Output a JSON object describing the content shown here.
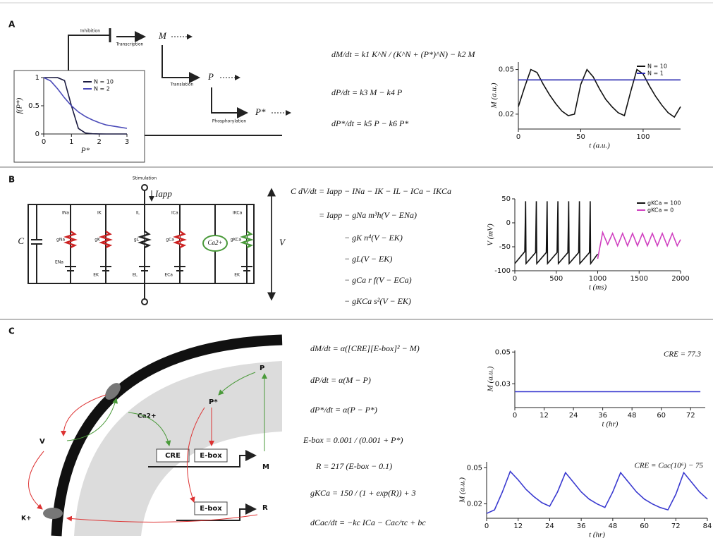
{
  "panels": [
    {
      "label": "A",
      "diagram": {
        "inhibition": "Inhibition",
        "transcription": "Transcription",
        "m": "M",
        "translation": "Translation",
        "p": "P",
        "phosphorylation": "Phosphorylation",
        "p_star": "P*"
      },
      "equations": [
        "dM/dt = k1 K^N / (K^N + (P*)^N) − k2 M",
        "dP/dt = k3 M − k4 P",
        "dP*/dt = k5 P − k6 P*"
      ]
    },
    {
      "label": "B",
      "diagram": {
        "stimulation": "Stimulation",
        "i_app": "Iapp",
        "c": "C",
        "currents": [
          "INa",
          "IK",
          "IL",
          "ICa",
          "IKCa"
        ],
        "conductances": [
          "gNa",
          "gK",
          "gL",
          "gCa",
          "gKCa"
        ],
        "reversals": [
          "ENa",
          "EK",
          "EL",
          "ECa",
          "EK"
        ],
        "calcium": "Ca2+",
        "v": "V"
      },
      "equations": [
        "C dV/dt = Iapp − INa − IK − IL − ICa − IKCa",
        "= Iapp − gNa m³h(V − ENa)",
        "− gK n⁴(V − EK)",
        "− gL(V − EK)",
        "− gCa r f(V − ECa)",
        "− gKCa s²(V − EK)"
      ]
    },
    {
      "label": "C",
      "diagram": {
        "calcium": "Ca2+",
        "v": "V",
        "potassium": "K+",
        "cre": "CRE",
        "ebox1": "E-box",
        "m": "M",
        "p": "P",
        "p_star": "P*",
        "ebox2": "E-box",
        "r": "R"
      },
      "equations": [
        "dM/dt = α([CRE][E-box]² − M)",
        "dP/dt = α(M − P)",
        "dP*/dt = α(P − P*)",
        "E-box = 0.001 / (0.001 + P*)",
        "R = 217 (E-box − 0.1)",
        "gKCa = 150 / (1 + exp(R)) + 3",
        "dCac/dt = −kc ICa − Cac/τc + bc"
      ]
    }
  ],
  "chart_data": [
    {
      "type": "line",
      "xlabel": "P*",
      "ylabel": "f(P*)",
      "x": [
        0,
        0.25,
        0.5,
        0.75,
        1,
        1.25,
        1.5,
        1.75,
        2,
        2.25,
        2.5,
        2.75,
        3
      ],
      "series": [
        {
          "name": "N = 10",
          "color": "#1a1a40",
          "values": [
            1,
            1,
            0.999,
            0.947,
            0.5,
            0.097,
            0.017,
            0.004,
            0.001,
            0,
            0,
            0,
            0
          ]
        },
        {
          "name": "N = 2",
          "color": "#4a4ab8",
          "values": [
            1,
            0.94,
            0.8,
            0.64,
            0.5,
            0.39,
            0.31,
            0.25,
            0.2,
            0.16,
            0.14,
            0.12,
            0.1
          ]
        }
      ],
      "xlim": [
        0,
        3
      ],
      "ylim": [
        0,
        1
      ],
      "xticks": [
        0,
        1,
        2,
        3
      ],
      "yticks": [
        0,
        0.5,
        1
      ],
      "legend": "upper right"
    },
    {
      "type": "line",
      "xlabel": "t (a.u.)",
      "ylabel": "M (a.u.)",
      "x": [
        0,
        5,
        10,
        15,
        20,
        25,
        30,
        35,
        40,
        45,
        50,
        55,
        60,
        65,
        70,
        75,
        80,
        85,
        90,
        95,
        100,
        105,
        110,
        115,
        120,
        125,
        130
      ],
      "series": [
        {
          "name": "N = 10",
          "color": "#111111",
          "values": [
            0.025,
            0.038,
            0.05,
            0.048,
            0.04,
            0.033,
            0.027,
            0.022,
            0.019,
            0.02,
            0.04,
            0.05,
            0.045,
            0.037,
            0.03,
            0.025,
            0.021,
            0.019,
            0.035,
            0.05,
            0.047,
            0.039,
            0.032,
            0.026,
            0.021,
            0.018,
            0.025
          ]
        },
        {
          "name": "N = 1",
          "color": "#2b2bb0",
          "values": [
            0.043,
            0.043,
            0.043,
            0.043,
            0.043,
            0.043,
            0.043,
            0.043,
            0.043,
            0.043,
            0.043,
            0.043,
            0.043,
            0.043,
            0.043,
            0.043,
            0.043,
            0.043,
            0.043,
            0.043,
            0.043,
            0.043,
            0.043,
            0.043,
            0.043,
            0.043,
            0.043
          ]
        }
      ],
      "xlim": [
        0,
        130
      ],
      "ylim": [
        0.01,
        0.055
      ],
      "xticks": [
        0,
        50,
        100
      ],
      "yticks": [
        0.02,
        0.05
      ],
      "legend": "upper right"
    },
    {
      "type": "line",
      "xlabel": "t (ms)",
      "ylabel": "V (mV)",
      "series": [
        {
          "name": "gKCa = 100",
          "color": "#111111",
          "x": [
            0,
            120,
            130,
            135,
            250,
            260,
            265,
            380,
            390,
            395,
            510,
            520,
            525,
            640,
            650,
            655,
            770,
            780,
            785,
            900,
            910,
            915,
            1000
          ],
          "values": [
            -85,
            -60,
            45,
            -85,
            -62,
            45,
            -85,
            -62,
            45,
            -85,
            -62,
            45,
            -85,
            -62,
            45,
            -85,
            -62,
            45,
            -85,
            -62,
            45,
            -85,
            -65
          ]
        },
        {
          "name": "gKCa = 0",
          "color": "#d040c0",
          "x": [
            1000,
            1060,
            1120,
            1180,
            1240,
            1300,
            1360,
            1420,
            1480,
            1540,
            1600,
            1660,
            1720,
            1780,
            1840,
            1900,
            1960,
            2000
          ],
          "values": [
            -75,
            -20,
            -45,
            -22,
            -48,
            -22,
            -48,
            -22,
            -48,
            -22,
            -48,
            -22,
            -48,
            -22,
            -48,
            -22,
            -48,
            -35
          ]
        }
      ],
      "xlim": [
        0,
        2000
      ],
      "ylim": [
        -100,
        50
      ],
      "xticks": [
        0,
        500,
        1000,
        1500,
        2000
      ],
      "yticks": [
        -100,
        -50,
        0,
        50
      ],
      "legend": "upper right"
    },
    {
      "type": "line",
      "xlabel": "t (hr)",
      "ylabel": "M (a.u.)",
      "annotation": "CRE = 77.3",
      "x": [
        0,
        76
      ],
      "values": [
        0.025,
        0.025
      ],
      "color": "#3a3ad0",
      "xlim": [
        0,
        78
      ],
      "ylim": [
        0.015,
        0.051
      ],
      "xticks": [
        0,
        12,
        24,
        36,
        48,
        60,
        72
      ],
      "yticks": [
        0.03,
        0.05
      ]
    },
    {
      "type": "line",
      "xlabel": "t (hr)",
      "ylabel": "M (a.u.)",
      "annotation": "CRE = Cac(10⁶) − 75",
      "x": [
        0,
        3,
        6,
        9,
        12,
        15,
        18,
        21,
        24,
        27,
        30,
        33,
        36,
        39,
        42,
        45,
        48,
        51,
        54,
        57,
        60,
        63,
        66,
        69,
        72,
        75,
        78,
        81,
        84
      ],
      "values": [
        0.012,
        0.015,
        0.03,
        0.047,
        0.04,
        0.032,
        0.026,
        0.021,
        0.018,
        0.03,
        0.046,
        0.038,
        0.03,
        0.024,
        0.02,
        0.017,
        0.03,
        0.046,
        0.038,
        0.03,
        0.024,
        0.02,
        0.017,
        0.015,
        0.028,
        0.046,
        0.038,
        0.03,
        0.024
      ],
      "color": "#3a3ad0",
      "xlim": [
        0,
        84
      ],
      "ylim": [
        0.008,
        0.055
      ],
      "xticks": [
        0,
        12,
        24,
        36,
        48,
        60,
        72,
        84
      ],
      "yticks": [
        0.02,
        0.05
      ]
    }
  ]
}
